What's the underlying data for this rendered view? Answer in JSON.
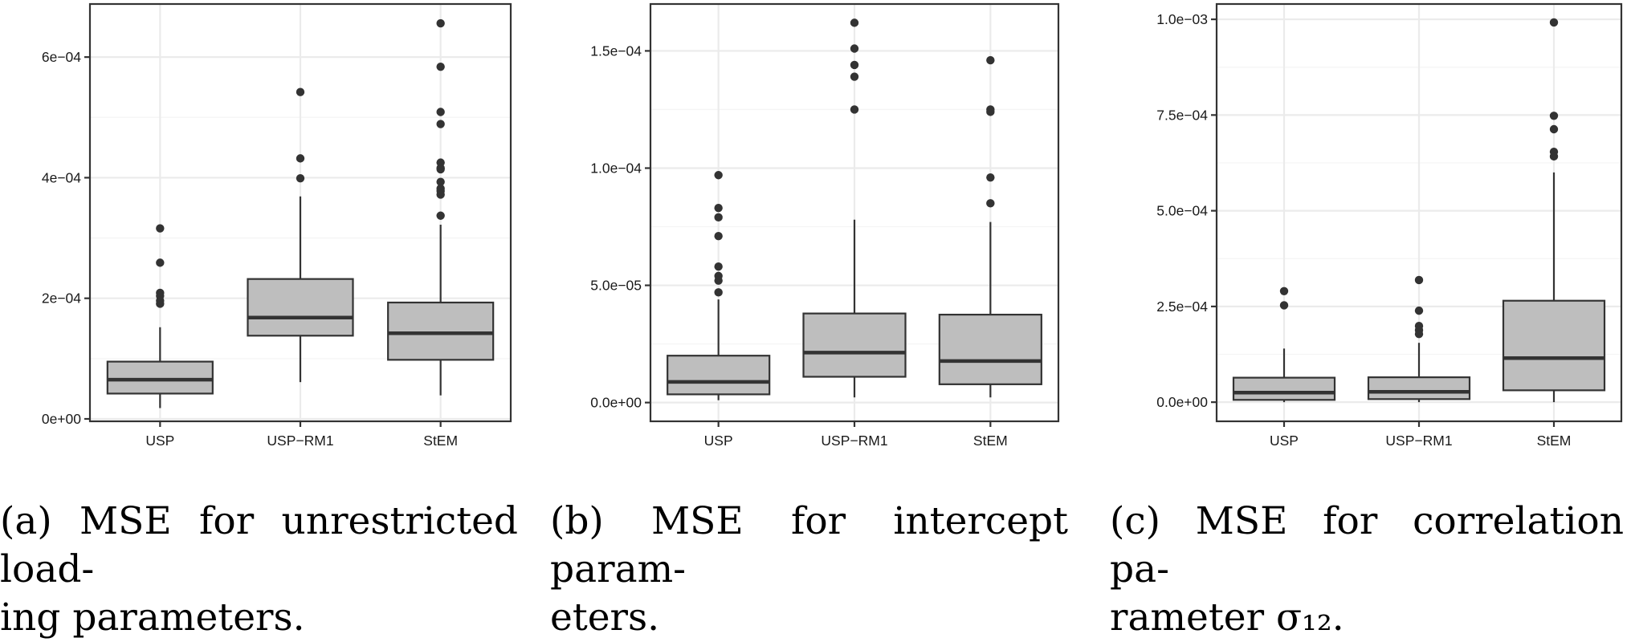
{
  "chart_data": [
    {
      "type": "box",
      "panel_label": "(a)",
      "caption": "MSE for unrestricted load-ing parameters.",
      "caption_lines": [
        "(a) MSE for unrestricted load-",
        "ing parameters."
      ],
      "categories": [
        "USP",
        "USP−RM1",
        "StEM"
      ],
      "ylim": [
        -4e-06,
        0.000688
      ],
      "yticks": [
        0,
        0.0002,
        0.0004,
        0.0006
      ],
      "ytick_labels": [
        "0e+00",
        "2e−04",
        "4e−04",
        "6e−04"
      ],
      "grid": true,
      "boxes": [
        {
          "name": "USP",
          "whisker_low": 1.8e-05,
          "q1": 4.2e-05,
          "median": 6.5e-05,
          "q3": 9.5e-05,
          "whisker_high": 0.000152,
          "outliers": [
            0.000316,
            0.000259,
            0.000209,
            0.000204,
            0.000196,
            0.000191
          ]
        },
        {
          "name": "USP−RM1",
          "whisker_low": 6.1e-05,
          "q1": 0.000138,
          "median": 0.000168,
          "q3": 0.000232,
          "whisker_high": 0.000369,
          "outliers": [
            0.000542,
            0.000432,
            0.000399
          ]
        },
        {
          "name": "StEM",
          "whisker_low": 3.9e-05,
          "q1": 9.8e-05,
          "median": 0.000142,
          "q3": 0.000193,
          "whisker_high": 0.000322,
          "outliers": [
            0.000656,
            0.000584,
            0.000509,
            0.000489,
            0.000425,
            0.000416,
            0.000414,
            0.000393,
            0.000382,
            0.000378,
            0.000372,
            0.000337
          ]
        }
      ]
    },
    {
      "type": "box",
      "panel_label": "(b)",
      "caption": "MSE for intercept param-eters.",
      "caption_lines": [
        "(b) MSE for intercept param-",
        "eters."
      ],
      "categories": [
        "USP",
        "USP−RM1",
        "StEM"
      ],
      "ylim": [
        -8e-06,
        0.00017
      ],
      "yticks": [
        0,
        5e-05,
        0.0001,
        0.00015
      ],
      "ytick_labels": [
        "0.0e+00",
        "5.0e−05",
        "1.0e−04",
        "1.5e−04"
      ],
      "grid": true,
      "boxes": [
        {
          "name": "USP",
          "whisker_low": 1e-06,
          "q1": 3.5e-06,
          "median": 8.8e-06,
          "q3": 2e-05,
          "whisker_high": 4.4e-05,
          "outliers": [
            9.7e-05,
            8.3e-05,
            7.9e-05,
            7.1e-05,
            5.8e-05,
            5.4e-05,
            5.2e-05,
            4.7e-05
          ]
        },
        {
          "name": "USP−RM1",
          "whisker_low": 2.2e-06,
          "q1": 1.1e-05,
          "median": 2.13e-05,
          "q3": 3.8e-05,
          "whisker_high": 7.8e-05,
          "outliers": [
            0.000162,
            0.000151,
            0.000144,
            0.000139,
            0.000125
          ]
        },
        {
          "name": "StEM",
          "whisker_low": 2.2e-06,
          "q1": 7.8e-06,
          "median": 1.77e-05,
          "q3": 3.75e-05,
          "whisker_high": 7.7e-05,
          "outliers": [
            0.000146,
            0.000125,
            0.000124,
            9.6e-05,
            8.5e-05
          ]
        }
      ]
    },
    {
      "type": "box",
      "panel_label": "(c)",
      "caption": "MSE for correlation pa-rameter σ₁₂.",
      "caption_lines": [
        "(c) MSE for correlation pa-",
        "rameter σ₁₂."
      ],
      "categories": [
        "USP",
        "USP−RM1",
        "StEM"
      ],
      "ylim": [
        -5e-05,
        0.00104
      ],
      "yticks": [
        0,
        0.00025,
        0.0005,
        0.00075,
        0.001
      ],
      "ytick_labels": [
        "0.0e+00",
        "2.5e−04",
        "5.0e−04",
        "7.5e−04",
        "1.0e−03"
      ],
      "grid": true,
      "boxes": [
        {
          "name": "USP",
          "whisker_low": 0,
          "q1": 6e-06,
          "median": 2.5e-05,
          "q3": 6.4e-05,
          "whisker_high": 0.00014,
          "outliers": [
            0.00029,
            0.000253
          ]
        },
        {
          "name": "USP−RM1",
          "whisker_low": 0,
          "q1": 8e-06,
          "median": 2.7e-05,
          "q3": 6.5e-05,
          "whisker_high": 0.000155,
          "outliers": [
            0.000319,
            0.000239,
            0.000199,
            0.000188,
            0.000178
          ]
        },
        {
          "name": "StEM",
          "whisker_low": 0,
          "q1": 3.1e-05,
          "median": 0.000115,
          "q3": 0.000265,
          "whisker_high": 0.0006,
          "outliers": [
            0.000992,
            0.000748,
            0.000713,
            0.000654,
            0.000642
          ]
        }
      ]
    }
  ],
  "colors": {
    "box_fill": "#bebebe",
    "box_stroke": "#333333",
    "grid_major": "#ebebeb",
    "grid_minor": "#f5f5f5",
    "panel_border": "#333333",
    "tick_label": "#1a1a1a"
  }
}
